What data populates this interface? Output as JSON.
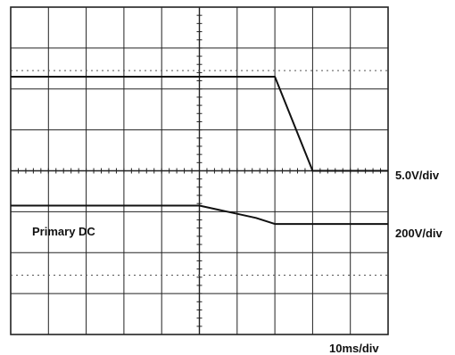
{
  "chart_data": {
    "type": "line",
    "title": "",
    "xlabel": "",
    "ylabel": "",
    "grid": true,
    "x_divisions": 10,
    "y_divisions": 8,
    "x": [
      -5,
      -4,
      -3,
      -2,
      -1,
      0,
      0.5,
      1,
      1.5,
      2,
      3,
      4,
      5
    ],
    "series": [
      {
        "name": "",
        "scale_label": "5.0V/div",
        "values": [
          2.3,
          2.3,
          2.3,
          2.3,
          2.3,
          2.3,
          2.3,
          2.3,
          2.3,
          2.3,
          0,
          0,
          0
        ]
      },
      {
        "name": "Primary DC",
        "scale_label": "200V/div",
        "values": [
          -0.85,
          -0.85,
          -0.85,
          -0.85,
          -0.85,
          -0.85,
          -0.95,
          -1.05,
          -1.15,
          -1.3,
          -1.3,
          -1.3,
          -1.3
        ]
      }
    ],
    "annotations": {
      "trace_label": "Primary DC",
      "ch1_scale": "5.0V/div",
      "ch2_scale": "200V/div",
      "time_scale": "10ms/div"
    },
    "colors": {
      "trace": "#111111",
      "grid": "#222222",
      "dotted": "#555555"
    }
  }
}
